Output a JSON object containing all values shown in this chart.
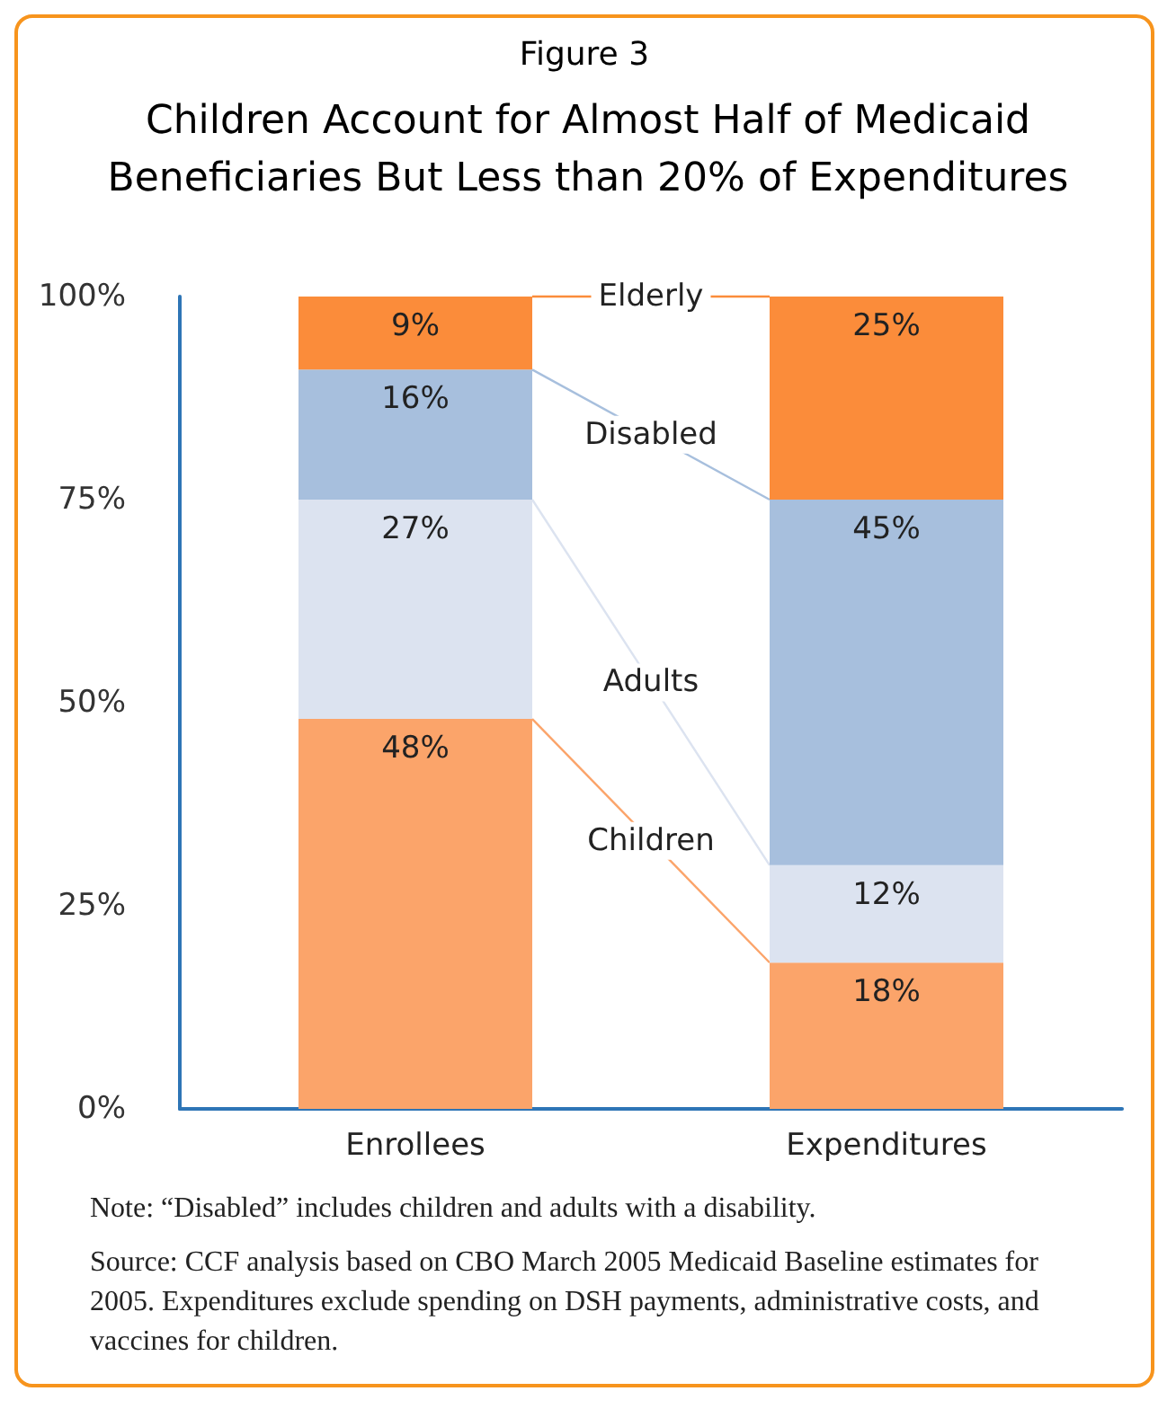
{
  "chart_data": {
    "type": "bar",
    "stacked": true,
    "title": "Children Account for Almost Half of Medicaid Beneficiaries But Less than 20% of Expenditures",
    "subtitle": "Figure 3",
    "categories": [
      "Enrollees",
      "Expenditures"
    ],
    "series": [
      {
        "name": "Children",
        "color": "#fba46a",
        "values": [
          48,
          18
        ],
        "value_labels": [
          "48%",
          "18%"
        ]
      },
      {
        "name": "Adults",
        "color": "#dce3f0",
        "values": [
          27,
          12
        ],
        "value_labels": [
          "27%",
          "12%"
        ]
      },
      {
        "name": "Disabled",
        "color": "#a7bfdd",
        "values": [
          16,
          45
        ],
        "value_labels": [
          "16%",
          "45%"
        ]
      },
      {
        "name": "Elderly",
        "color": "#fb8c3a",
        "values": [
          9,
          25
        ],
        "value_labels": [
          "9%",
          "25%"
        ]
      }
    ],
    "ylim": [
      0,
      100
    ],
    "yticks": [
      {
        "value": 0,
        "label": "0%"
      },
      {
        "value": 25,
        "label": "25%"
      },
      {
        "value": 50,
        "label": "50%"
      },
      {
        "value": 75,
        "label": "75%"
      },
      {
        "value": 100,
        "label": "100%"
      }
    ],
    "grid": false,
    "annotations": [
      "Note: “Disabled” includes children and adults with a disability.",
      "Source: CCF analysis based on CBO March 2005 Medicaid Baseline estimates for 2005.  Expenditures exclude spending on DSH payments, administrative costs, and vaccines for children."
    ]
  }
}
